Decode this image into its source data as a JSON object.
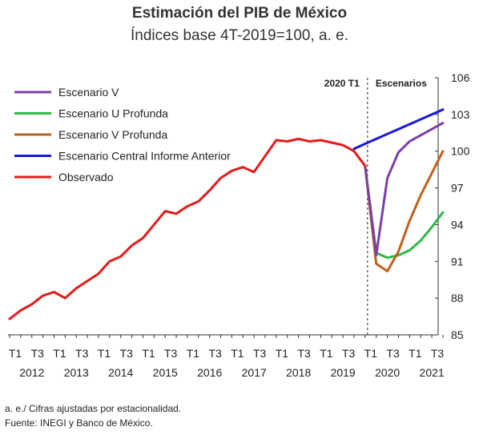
{
  "chart_data": {
    "type": "line",
    "title": "Estimación del PIB de México",
    "subtitle": "Índices base 4T-2019=100, a. e.",
    "ylim": [
      85,
      106
    ],
    "y_ticks": [
      "85",
      "88",
      "91",
      "94",
      "97",
      "100",
      "103",
      "106"
    ],
    "y_axis_position": "right",
    "grid": false,
    "legend_placement": "top-left",
    "quarter_labels": [
      "T1",
      "T3",
      "T1",
      "T3",
      "T1",
      "T3",
      "T1",
      "T3",
      "T1",
      "T3",
      "T1",
      "T3",
      "T1",
      "T3",
      "T1",
      "T3",
      "T1",
      "T3",
      "T1",
      "T3"
    ],
    "years": [
      "2012",
      "2013",
      "2014",
      "2015",
      "2016",
      "2017",
      "2018",
      "2019",
      "2020",
      "2021"
    ],
    "annotations": {
      "left_of_divider": "2020 T1",
      "right_of_divider": "Escenarios"
    },
    "series": [
      {
        "name": "Escenario V",
        "color": "#7b3fa6",
        "x": [
          "2020T1",
          "2020T2",
          "2020T3",
          "2020T4",
          "2021T1",
          "2021T2",
          "2021T3",
          "2021T4"
        ],
        "values": [
          98.8,
          91.5,
          97.8,
          99.9,
          100.8,
          101.3,
          101.8,
          102.3
        ]
      },
      {
        "name": "Escenario U Profunda",
        "color": "#2eb84c",
        "x": [
          "2020T1",
          "2020T2",
          "2020T3",
          "2020T4",
          "2021T1",
          "2021T2",
          "2021T3",
          "2021T4"
        ],
        "values": [
          98.8,
          91.7,
          91.3,
          91.5,
          91.9,
          92.7,
          93.8,
          95.0
        ]
      },
      {
        "name": "Escenario V Profunda",
        "color": "#c0601e",
        "x": [
          "2020T1",
          "2020T2",
          "2020T3",
          "2020T4",
          "2021T1",
          "2021T2",
          "2021T3",
          "2021T4"
        ],
        "values": [
          98.8,
          90.8,
          90.2,
          91.8,
          94.3,
          96.4,
          98.2,
          100.0
        ]
      },
      {
        "name": "Escenario Central Informe Anterior",
        "color": "#1818d8",
        "x": [
          "2019T4",
          "2020T1",
          "2020T2",
          "2020T3",
          "2020T4",
          "2021T1",
          "2021T2",
          "2021T3",
          "2021T4"
        ],
        "values": [
          100.2,
          100.6,
          101.0,
          101.4,
          101.8,
          102.2,
          102.6,
          103.0,
          103.4
        ]
      },
      {
        "name": "Observado",
        "color": "#e41a1a",
        "x": [
          "2012T1",
          "2012T2",
          "2012T3",
          "2012T4",
          "2013T1",
          "2013T2",
          "2013T3",
          "2013T4",
          "2014T1",
          "2014T2",
          "2014T3",
          "2014T4",
          "2015T1",
          "2015T2",
          "2015T3",
          "2015T4",
          "2016T1",
          "2016T2",
          "2016T3",
          "2016T4",
          "2017T1",
          "2017T2",
          "2017T3",
          "2017T4",
          "2018T1",
          "2018T2",
          "2018T3",
          "2018T4",
          "2019T1",
          "2019T2",
          "2019T3",
          "2019T4",
          "2020T1"
        ],
        "values": [
          86.3,
          87.0,
          87.5,
          88.2,
          88.5,
          88.0,
          88.8,
          89.4,
          90.0,
          91.0,
          91.4,
          92.3,
          92.9,
          94.0,
          95.1,
          94.9,
          95.5,
          95.9,
          96.8,
          97.8,
          98.4,
          98.7,
          98.3,
          99.6,
          100.9,
          100.8,
          101.0,
          100.8,
          100.9,
          100.7,
          100.5,
          100.0,
          98.8
        ]
      }
    ]
  },
  "footnotes": [
    "a. e./ Cifras ajustadas por estacionalidad.",
    "Fuente: INEGI y Banco de México."
  ]
}
